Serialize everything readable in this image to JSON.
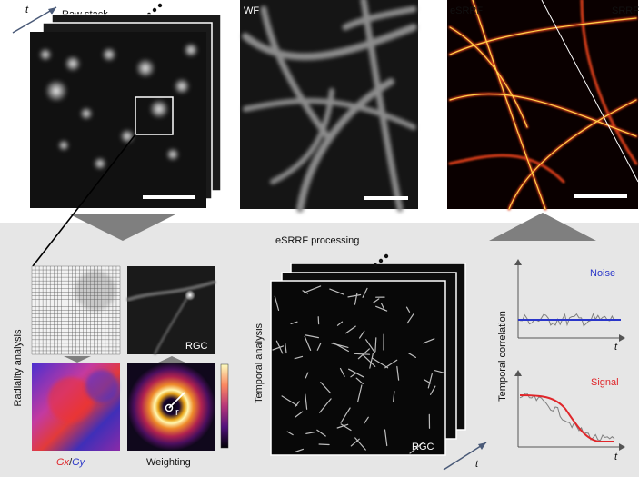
{
  "top": {
    "time_axis": "t",
    "raw_label": "Raw stack",
    "wf_label": "WF",
    "esrrf_label": "eSRRF",
    "srrf_label": "SRRF"
  },
  "bottom": {
    "processing_title": "eSRRF processing",
    "radiality_label": "Radiality analysis",
    "rgc_small_label": "RGC",
    "gradient_label": {
      "gx": "Gx",
      "sep": "/",
      "gy": "Gy"
    },
    "weighting_label": "Weighting",
    "radius_symbol": "r",
    "temporal_label": "Temporal analysis",
    "rgc_stack_label": "RGC",
    "time_axis_bottom": "t",
    "correlation_ylabel": "Temporal correlation",
    "noise_label": "Noise",
    "signal_label": "Signal",
    "plot_x_noise": "t",
    "plot_x_signal": "t"
  },
  "colors": {
    "noise": "#2a36c9",
    "signal": "#e0262a",
    "panel_bg": "#e6e6e6",
    "arrow": "#7f7f7f"
  }
}
